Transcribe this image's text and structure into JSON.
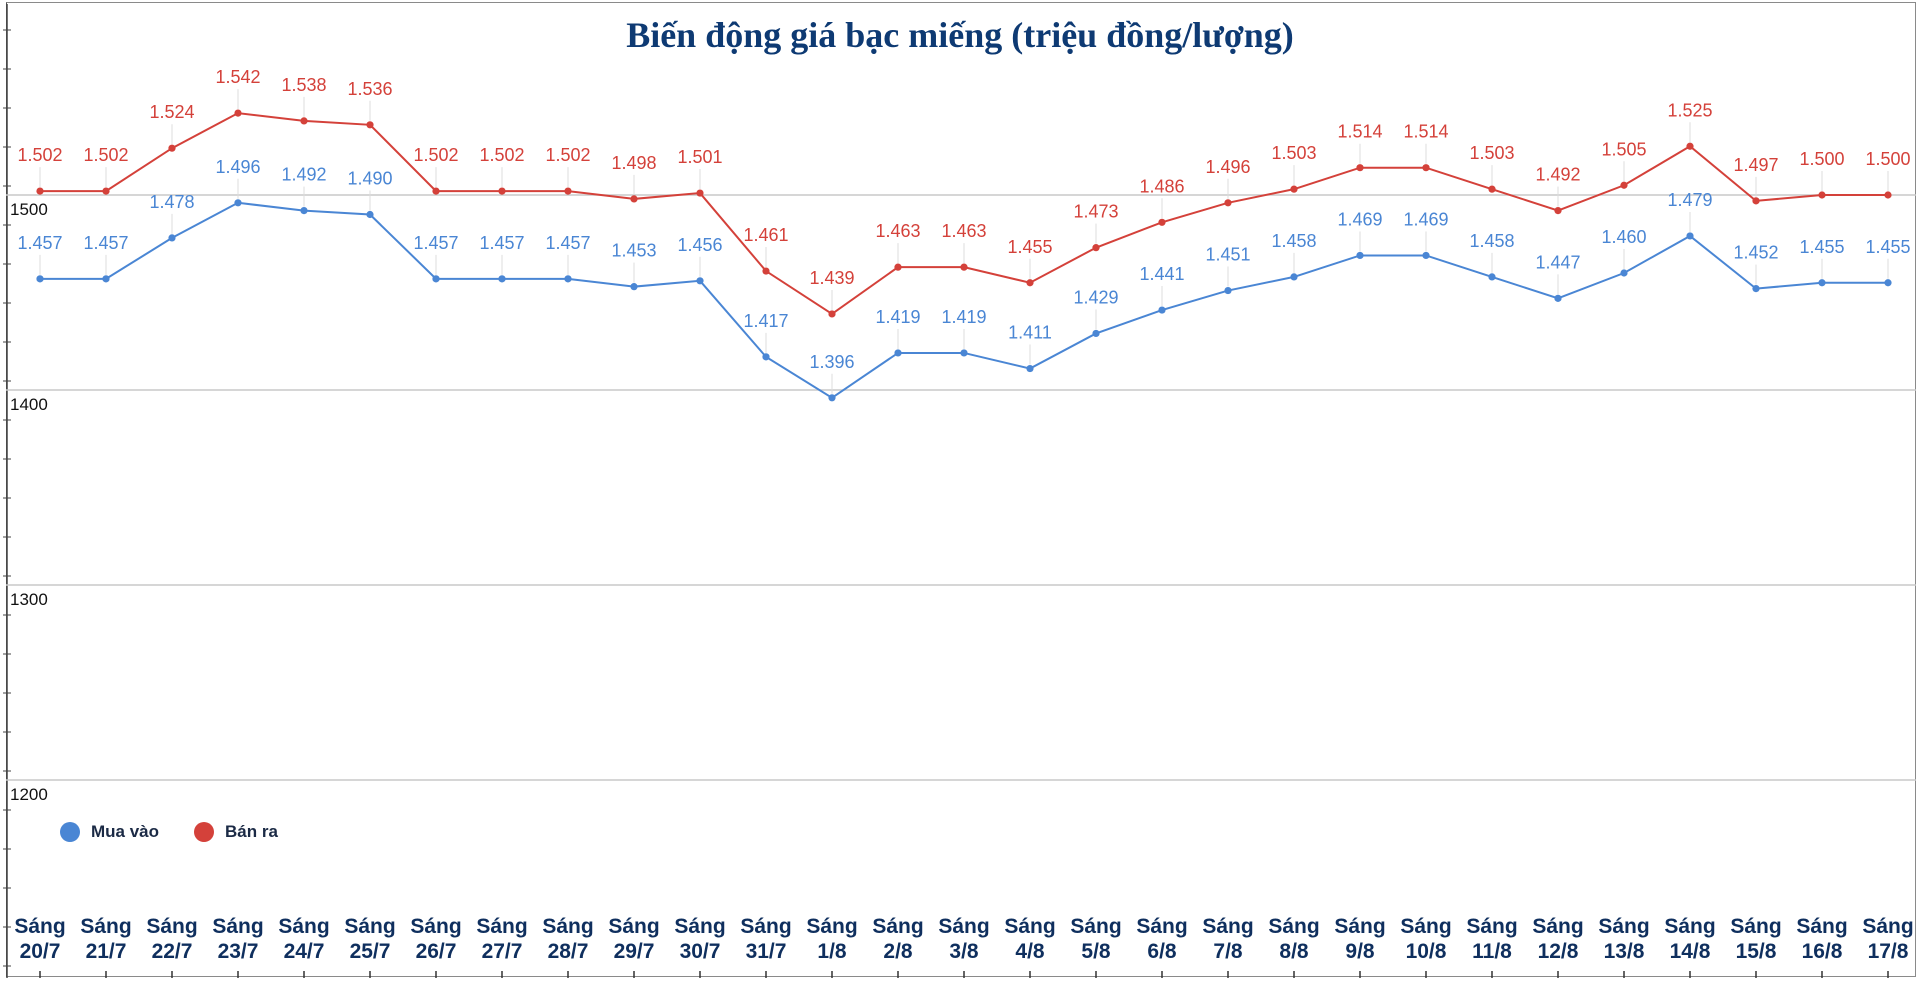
{
  "chart_data": {
    "type": "line",
    "title": "Biến động giá bạc miếng (triệu đồng/lượng)",
    "xlabel": "",
    "ylabel": "",
    "ylim": [
      1125,
      1560
    ],
    "yticks": [
      1200,
      1300,
      1400,
      1500
    ],
    "grid": true,
    "legend_position": "bottom-left",
    "categories": [
      [
        "Sáng",
        "20/7"
      ],
      [
        "Sáng",
        "21/7"
      ],
      [
        "Sáng",
        "22/7"
      ],
      [
        "Sáng",
        "23/7"
      ],
      [
        "Sáng",
        "24/7"
      ],
      [
        "Sáng",
        "25/7"
      ],
      [
        "Sáng",
        "26/7"
      ],
      [
        "Sáng",
        "27/7"
      ],
      [
        "Sáng",
        "28/7"
      ],
      [
        "Sáng",
        "29/7"
      ],
      [
        "Sáng",
        "30/7"
      ],
      [
        "Sáng",
        "31/7"
      ],
      [
        "Sáng",
        "1/8"
      ],
      [
        "Sáng",
        "2/8"
      ],
      [
        "Sáng",
        "3/8"
      ],
      [
        "Sáng",
        "4/8"
      ],
      [
        "Sáng",
        "5/8"
      ],
      [
        "Sáng",
        "6/8"
      ],
      [
        "Sáng",
        "7/8"
      ],
      [
        "Sáng",
        "8/8"
      ],
      [
        "Sáng",
        "9/8"
      ],
      [
        "Sáng",
        "10/8"
      ],
      [
        "Sáng",
        "11/8"
      ],
      [
        "Sáng",
        "12/8"
      ],
      [
        "Sáng",
        "13/8"
      ],
      [
        "Sáng",
        "14/8"
      ],
      [
        "Sáng",
        "15/8"
      ],
      [
        "Sáng",
        "16/8"
      ],
      [
        "Sáng",
        "17/8"
      ]
    ],
    "series": [
      {
        "name": "Mua vào",
        "color": "#4a86d4",
        "values": [
          1457,
          1457,
          1478,
          1496,
          1492,
          1490,
          1457,
          1457,
          1457,
          1453,
          1456,
          1417,
          1396,
          1419,
          1419,
          1411,
          1429,
          1441,
          1451,
          1458,
          1469,
          1469,
          1458,
          1447,
          1460,
          1479,
          1452,
          1455,
          1455
        ],
        "labels": [
          "1.457",
          "1.457",
          "1.478",
          "1.496",
          "1.492",
          "1.490",
          "1.457",
          "1.457",
          "1.457",
          "1.453",
          "1.456",
          "1.417",
          "1.396",
          "1.419",
          "1.419",
          "1.411",
          "1.429",
          "1.441",
          "1.451",
          "1.458",
          "1.469",
          "1.469",
          "1.458",
          "1.447",
          "1.460",
          "1.479",
          "1.452",
          "1.455",
          "1.455"
        ]
      },
      {
        "name": "Bán ra",
        "color": "#d4413a",
        "values": [
          1502,
          1502,
          1524,
          1542,
          1538,
          1536,
          1502,
          1502,
          1502,
          1498,
          1501,
          1461,
          1439,
          1463,
          1463,
          1455,
          1473,
          1486,
          1496,
          1503,
          1514,
          1514,
          1503,
          1492,
          1505,
          1525,
          1497,
          1500,
          1500
        ],
        "labels": [
          "1.502",
          "1.502",
          "1.524",
          "1.542",
          "1.538",
          "1.536",
          "1.502",
          "1.502",
          "1.502",
          "1.498",
          "1.501",
          "1.461",
          "1.439",
          "1.463",
          "1.463",
          "1.455",
          "1.473",
          "1.486",
          "1.496",
          "1.503",
          "1.514",
          "1.514",
          "1.503",
          "1.492",
          "1.505",
          "1.525",
          "1.497",
          "1.500",
          "1.500"
        ]
      }
    ]
  },
  "legend": {
    "buy_label": "Mua vào",
    "sell_label": "Bán ra"
  }
}
